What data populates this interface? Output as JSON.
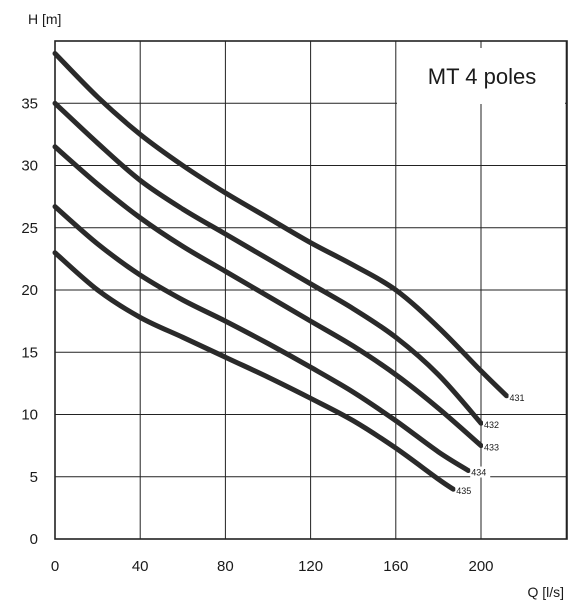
{
  "chart_data": {
    "type": "line",
    "title": "MT 4 poles",
    "xlabel": "Q [l/s]",
    "ylabel": "H [m]",
    "xlim": [
      0,
      240
    ],
    "ylim": [
      0,
      40
    ],
    "xticks": [
      0,
      40,
      80,
      120,
      160,
      200
    ],
    "yticks": [
      0,
      5,
      10,
      15,
      20,
      25,
      30,
      35
    ],
    "grid": true,
    "legend": "top-right",
    "series": [
      {
        "name": "431",
        "x": [
          0,
          20,
          40,
          60,
          80,
          100,
          120,
          140,
          160,
          180,
          200,
          212
        ],
        "y": [
          39,
          35.5,
          32.5,
          30,
          27.8,
          25.8,
          23.8,
          22,
          20,
          17,
          13.5,
          11.5
        ]
      },
      {
        "name": "432",
        "x": [
          0,
          20,
          40,
          60,
          80,
          100,
          120,
          140,
          160,
          180,
          200
        ],
        "y": [
          35,
          31.8,
          28.8,
          26.5,
          24.5,
          22.5,
          20.5,
          18.5,
          16.2,
          13.2,
          9.3
        ]
      },
      {
        "name": "433",
        "x": [
          0,
          20,
          40,
          60,
          80,
          100,
          120,
          140,
          160,
          180,
          200
        ],
        "y": [
          31.5,
          28.5,
          25.8,
          23.5,
          21.5,
          19.5,
          17.5,
          15.5,
          13.2,
          10.5,
          7.5
        ]
      },
      {
        "name": "434",
        "x": [
          0,
          20,
          40,
          60,
          80,
          100,
          120,
          140,
          160,
          180,
          194
        ],
        "y": [
          26.7,
          23.7,
          21.2,
          19.2,
          17.5,
          15.7,
          13.8,
          11.8,
          9.5,
          7,
          5.5
        ]
      },
      {
        "name": "435",
        "x": [
          0,
          20,
          40,
          60,
          80,
          100,
          120,
          140,
          160,
          180,
          187
        ],
        "y": [
          23,
          20,
          17.8,
          16.2,
          14.6,
          13,
          11.3,
          9.5,
          7.3,
          4.8,
          4
        ]
      }
    ]
  }
}
